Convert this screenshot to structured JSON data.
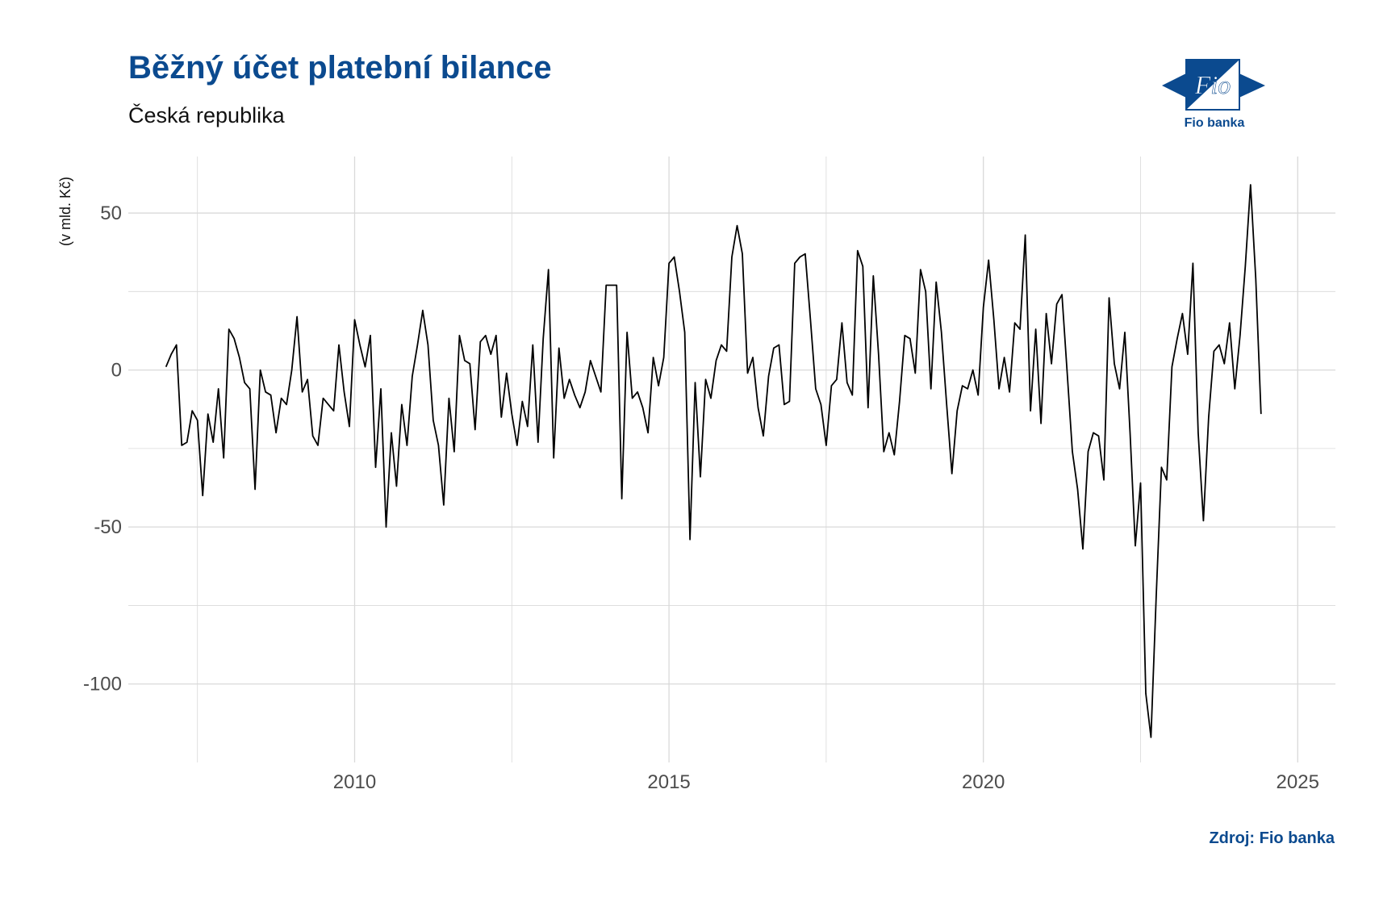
{
  "header": {
    "title": "Běžný účet platební bilance",
    "subtitle": "Česká republika"
  },
  "logo": {
    "icon": "fio-banka-logo-icon",
    "caption": "Fio banka",
    "mark_text": "Fio",
    "color": "#0b4a8f"
  },
  "footer": {
    "source": "Zdroj: Fio banka"
  },
  "chart_data": {
    "type": "line",
    "title": "Běžný účet platební bilance",
    "subtitle": "Česká republika",
    "ylabel": "(v mld. Kč)",
    "xlabel": "",
    "xlim": [
      2006.4,
      2025.6
    ],
    "ylim": [
      -125,
      68
    ],
    "x_ticks": [
      2010,
      2015,
      2020,
      2025
    ],
    "x_tick_labels": [
      "2010",
      "2015",
      "2020",
      "2025"
    ],
    "x_minor_gridlines": [
      2007.5,
      2012.5,
      2017.5,
      2022.5
    ],
    "y_ticks": [
      50,
      0,
      -50,
      -100
    ],
    "y_tick_labels": [
      "50",
      "0",
      "-50",
      "-100"
    ],
    "y_minor_gridlines": [
      25,
      -25,
      -75
    ],
    "grid": true,
    "legend": "none",
    "line_color": "#000000",
    "gridline_color": "#d9d9d9",
    "x_start": 2007.0,
    "x_step_months": 1,
    "series": [
      {
        "values": [
          1,
          5,
          8,
          -24,
          -23,
          -13,
          -16,
          -40,
          -14,
          -23,
          -6,
          -28,
          13,
          10,
          4,
          -4,
          -6,
          -38,
          0,
          -7,
          -8,
          -20,
          -9,
          -11,
          0,
          17,
          -7,
          -3,
          -21,
          -24,
          -9,
          -11,
          -13,
          8,
          -7,
          -18,
          16,
          8,
          1,
          11,
          -31,
          -6,
          -50,
          -20,
          -37,
          -11,
          -24,
          -2,
          8,
          19,
          8,
          -16,
          -24,
          -43,
          -9,
          -26,
          11,
          3,
          2,
          -19,
          9,
          11,
          5,
          11,
          -15,
          -1,
          -14,
          -24,
          -10,
          -18,
          8,
          -23,
          10,
          32,
          -28,
          7,
          -9,
          -3,
          -8,
          -12,
          -7,
          3,
          -2,
          -7,
          27,
          27,
          27,
          -41,
          12,
          -9,
          -7,
          -12,
          -20,
          4,
          -5,
          4,
          34,
          36,
          25,
          12,
          -54,
          -4,
          -34,
          -3,
          -9,
          3,
          8,
          6,
          36,
          46,
          37,
          -1,
          4,
          -12,
          -21,
          -2,
          7,
          8,
          -11,
          -10,
          34,
          36,
          37,
          16,
          -6,
          -11,
          -24,
          -5,
          -3,
          15,
          -4,
          -8,
          38,
          33,
          -12,
          30,
          5,
          -26,
          -20,
          -27,
          -10,
          11,
          10,
          -1,
          32,
          25,
          -6,
          28,
          12,
          -11,
          -33,
          -13,
          -5,
          -6,
          0,
          -8,
          20,
          35,
          16,
          -6,
          4,
          -7,
          15,
          13,
          43,
          -13,
          13,
          -17,
          18,
          2,
          21,
          24,
          -1,
          -26,
          -38,
          -57,
          -26,
          -20,
          -21,
          -35,
          23,
          2,
          -6,
          12,
          -20,
          -56,
          -36,
          -103,
          -117,
          -72,
          -31,
          -35,
          1,
          10,
          18,
          5,
          34,
          -20,
          -48,
          -15,
          6,
          8,
          2,
          15,
          -6,
          11,
          33,
          59,
          29,
          -14
        ]
      }
    ]
  }
}
